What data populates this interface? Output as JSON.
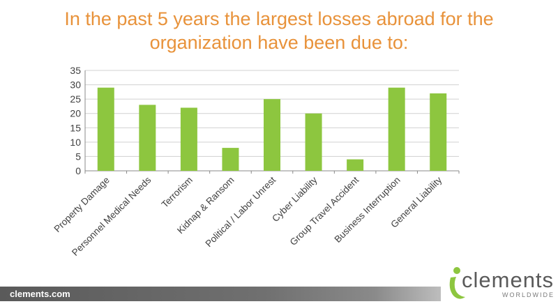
{
  "header": {
    "title_line1": "In the past 5 years the largest losses abroad for the",
    "title_line2": "organization have been due to:"
  },
  "colors": {
    "title": "#e8923a",
    "bar": "#8dc63f",
    "gridline": "#d0d0d0",
    "axis": "#888888",
    "text": "#404040",
    "logo_green": "#8dc63f"
  },
  "chart_data": {
    "type": "bar",
    "categories": [
      "Property Damage",
      "Personnel Medical Needs",
      "Terrorism",
      "Kidnap & Ransom",
      "Political / Labor Unrest",
      "Cyber Liability",
      "Group Travel Accident",
      "Business Interruption",
      "General Liability"
    ],
    "values": [
      29,
      23,
      22,
      8,
      25,
      20,
      4,
      29,
      27
    ],
    "ylim": [
      0,
      35
    ],
    "yticks": [
      0,
      5,
      10,
      15,
      20,
      25,
      30,
      35
    ],
    "grid": true,
    "legend": "none"
  },
  "footer": {
    "url": "clements.com",
    "logo_word": "clements",
    "logo_sub": "WORLDWIDE",
    "logo_icon": "person-swoosh-icon"
  }
}
